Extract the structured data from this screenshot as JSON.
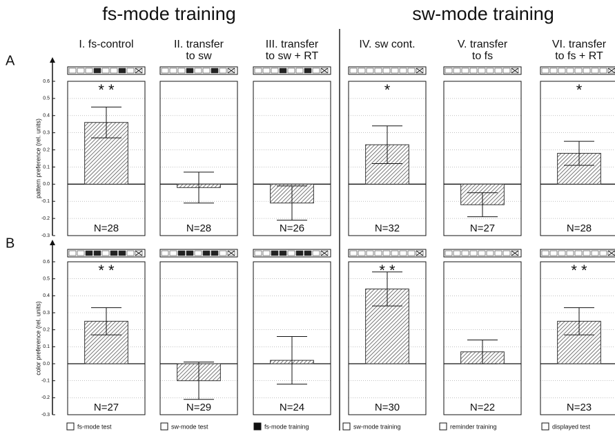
{
  "groups": [
    "fs-mode training",
    "sw-mode training"
  ],
  "columns": [
    [
      "I. fs-control"
    ],
    [
      "II. transfer",
      "to sw"
    ],
    [
      "III. transfer",
      "to sw + RT"
    ],
    [
      "IV. sw cont."
    ],
    [
      "V. transfer",
      "to fs"
    ],
    [
      "VI. transfer",
      "to fs + RT"
    ]
  ],
  "chart_data": [
    {
      "type": "bar",
      "row_label": "A",
      "y_label": "pattern preference (rel. units)",
      "values": [
        0.36,
        -0.02,
        -0.11,
        0.23,
        -0.12,
        0.18
      ],
      "errors": [
        0.09,
        0.09,
        0.1,
        0.11,
        0.07,
        0.07
      ],
      "n_labels": [
        "N=28",
        "N=28",
        "N=26",
        "N=32",
        "N=27",
        "N=28"
      ],
      "significance": [
        "* *",
        null,
        null,
        "*",
        null,
        "*"
      ],
      "ylim": [
        -0.3,
        0.6
      ],
      "yticks": [
        0.6,
        0.5,
        0.4,
        0.3,
        0.2,
        0.1,
        {
          "value": 0,
          "label": "0.0"
        },
        -0.1,
        -0.2,
        -0.3
      ],
      "grid": true,
      "color": "#888888"
    },
    {
      "type": "bar",
      "row_label": "B",
      "y_label": "color preference (rel. units)",
      "values": [
        0.25,
        -0.1,
        0.02,
        0.44,
        0.07,
        0.25
      ],
      "errors": [
        0.08,
        0.11,
        0.14,
        0.1,
        0.07,
        0.08
      ],
      "n_labels": [
        "N=27",
        "N=29",
        "N=24",
        "N=30",
        "N=22",
        "N=23"
      ],
      "significance": [
        "* *",
        null,
        null,
        "* *",
        null,
        "* *"
      ],
      "ylim": [
        -0.3,
        0.6
      ],
      "yticks": [
        0.6,
        0.5,
        0.4,
        0.3,
        0.2,
        0.1,
        {
          "value": 0,
          "label": "0.0"
        },
        -0.1,
        -0.2,
        -0.3
      ],
      "grid": true,
      "color": "#888888"
    }
  ],
  "legend": [
    "fs-mode test",
    "sw-mode test",
    "fs-mode training",
    "sw-mode training",
    "reminder training",
    "displayed test"
  ]
}
